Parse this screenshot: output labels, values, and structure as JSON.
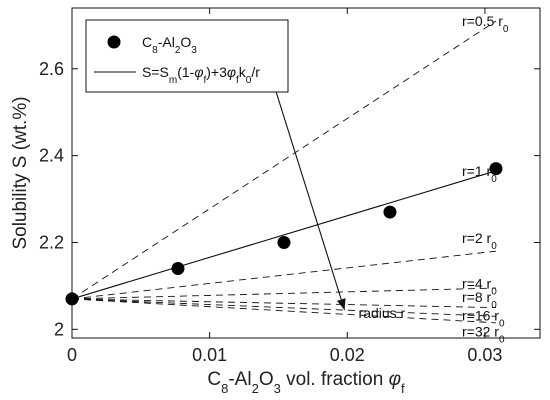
{
  "chart_data": {
    "type": "scatter",
    "xlabel": {
      "main": "C",
      "sub1": "8",
      "mid": "-Al",
      "sub2": "2",
      "mid2": "O",
      "sub3": "3",
      "rest": " vol. fraction ",
      "sym": "φ",
      "symsub": "f"
    },
    "ylabel": "Solubility S (wt.%)",
    "xlim": [
      0,
      0.034
    ],
    "ylim": [
      1.98,
      2.74
    ],
    "xticks": [
      0,
      0.01,
      0.02,
      0.03
    ],
    "xtick_labels": [
      "0",
      "0.01",
      "0.02",
      "0.03"
    ],
    "yticks": [
      2.0,
      2.2,
      2.4,
      2.6
    ],
    "ytick_labels": [
      "2",
      "2.2",
      "2.4",
      "2.6"
    ],
    "grid": false,
    "legend_position": "top-left",
    "legend": {
      "marker_label": {
        "main": "C",
        "sub1": "8",
        "mid": "-Al",
        "sub2": "2",
        "mid2": "O",
        "sub3": "3"
      },
      "line_label": "S=S(1-φ)+3φk/r",
      "line_label_parts": {
        "a": "S=S",
        "a_sub": "m",
        "b": "(1-",
        "phi1": "φ",
        "phi1_sub": "f",
        "c": ")+3",
        "phi2": "φ",
        "phi2_sub": "f",
        "d": "k",
        "d_sub": "0",
        "e": "/r"
      }
    },
    "points": {
      "name": "C8-Al2O3",
      "x": [
        0,
        0.0077,
        0.0154,
        0.0231,
        0.0308
      ],
      "y": [
        2.07,
        2.14,
        2.2,
        2.27,
        2.37
      ]
    },
    "model": {
      "x0": 0,
      "x1": 0.0308,
      "y0": 2.07,
      "curves": [
        {
          "label": "r=0.5 r",
          "label_sub": "0",
          "y_end": 2.71,
          "style": "dashed"
        },
        {
          "label": "r=1 r",
          "label_sub": "0",
          "y_end": 2.365,
          "style": "solid"
        },
        {
          "label": "r=2 r",
          "label_sub": "0",
          "y_end": 2.18,
          "style": "dashed"
        },
        {
          "label": "r=4 r",
          "label_sub": "0",
          "y_end": 2.095,
          "style": "dashed"
        },
        {
          "label": "r=8 r",
          "label_sub": "0",
          "y_end": 2.05,
          "style": "dashed"
        },
        {
          "label": "r=16 r",
          "label_sub": "0",
          "y_end": 2.03,
          "style": "dashed"
        },
        {
          "label": "r=32 r",
          "label_sub": "0",
          "y_end": 2.015,
          "style": "dashed"
        }
      ]
    },
    "annotation": {
      "text": "radius r",
      "arrow_from": [
        0.0145,
        2.58
      ],
      "arrow_to": [
        0.0198,
        1.98
      ]
    }
  }
}
